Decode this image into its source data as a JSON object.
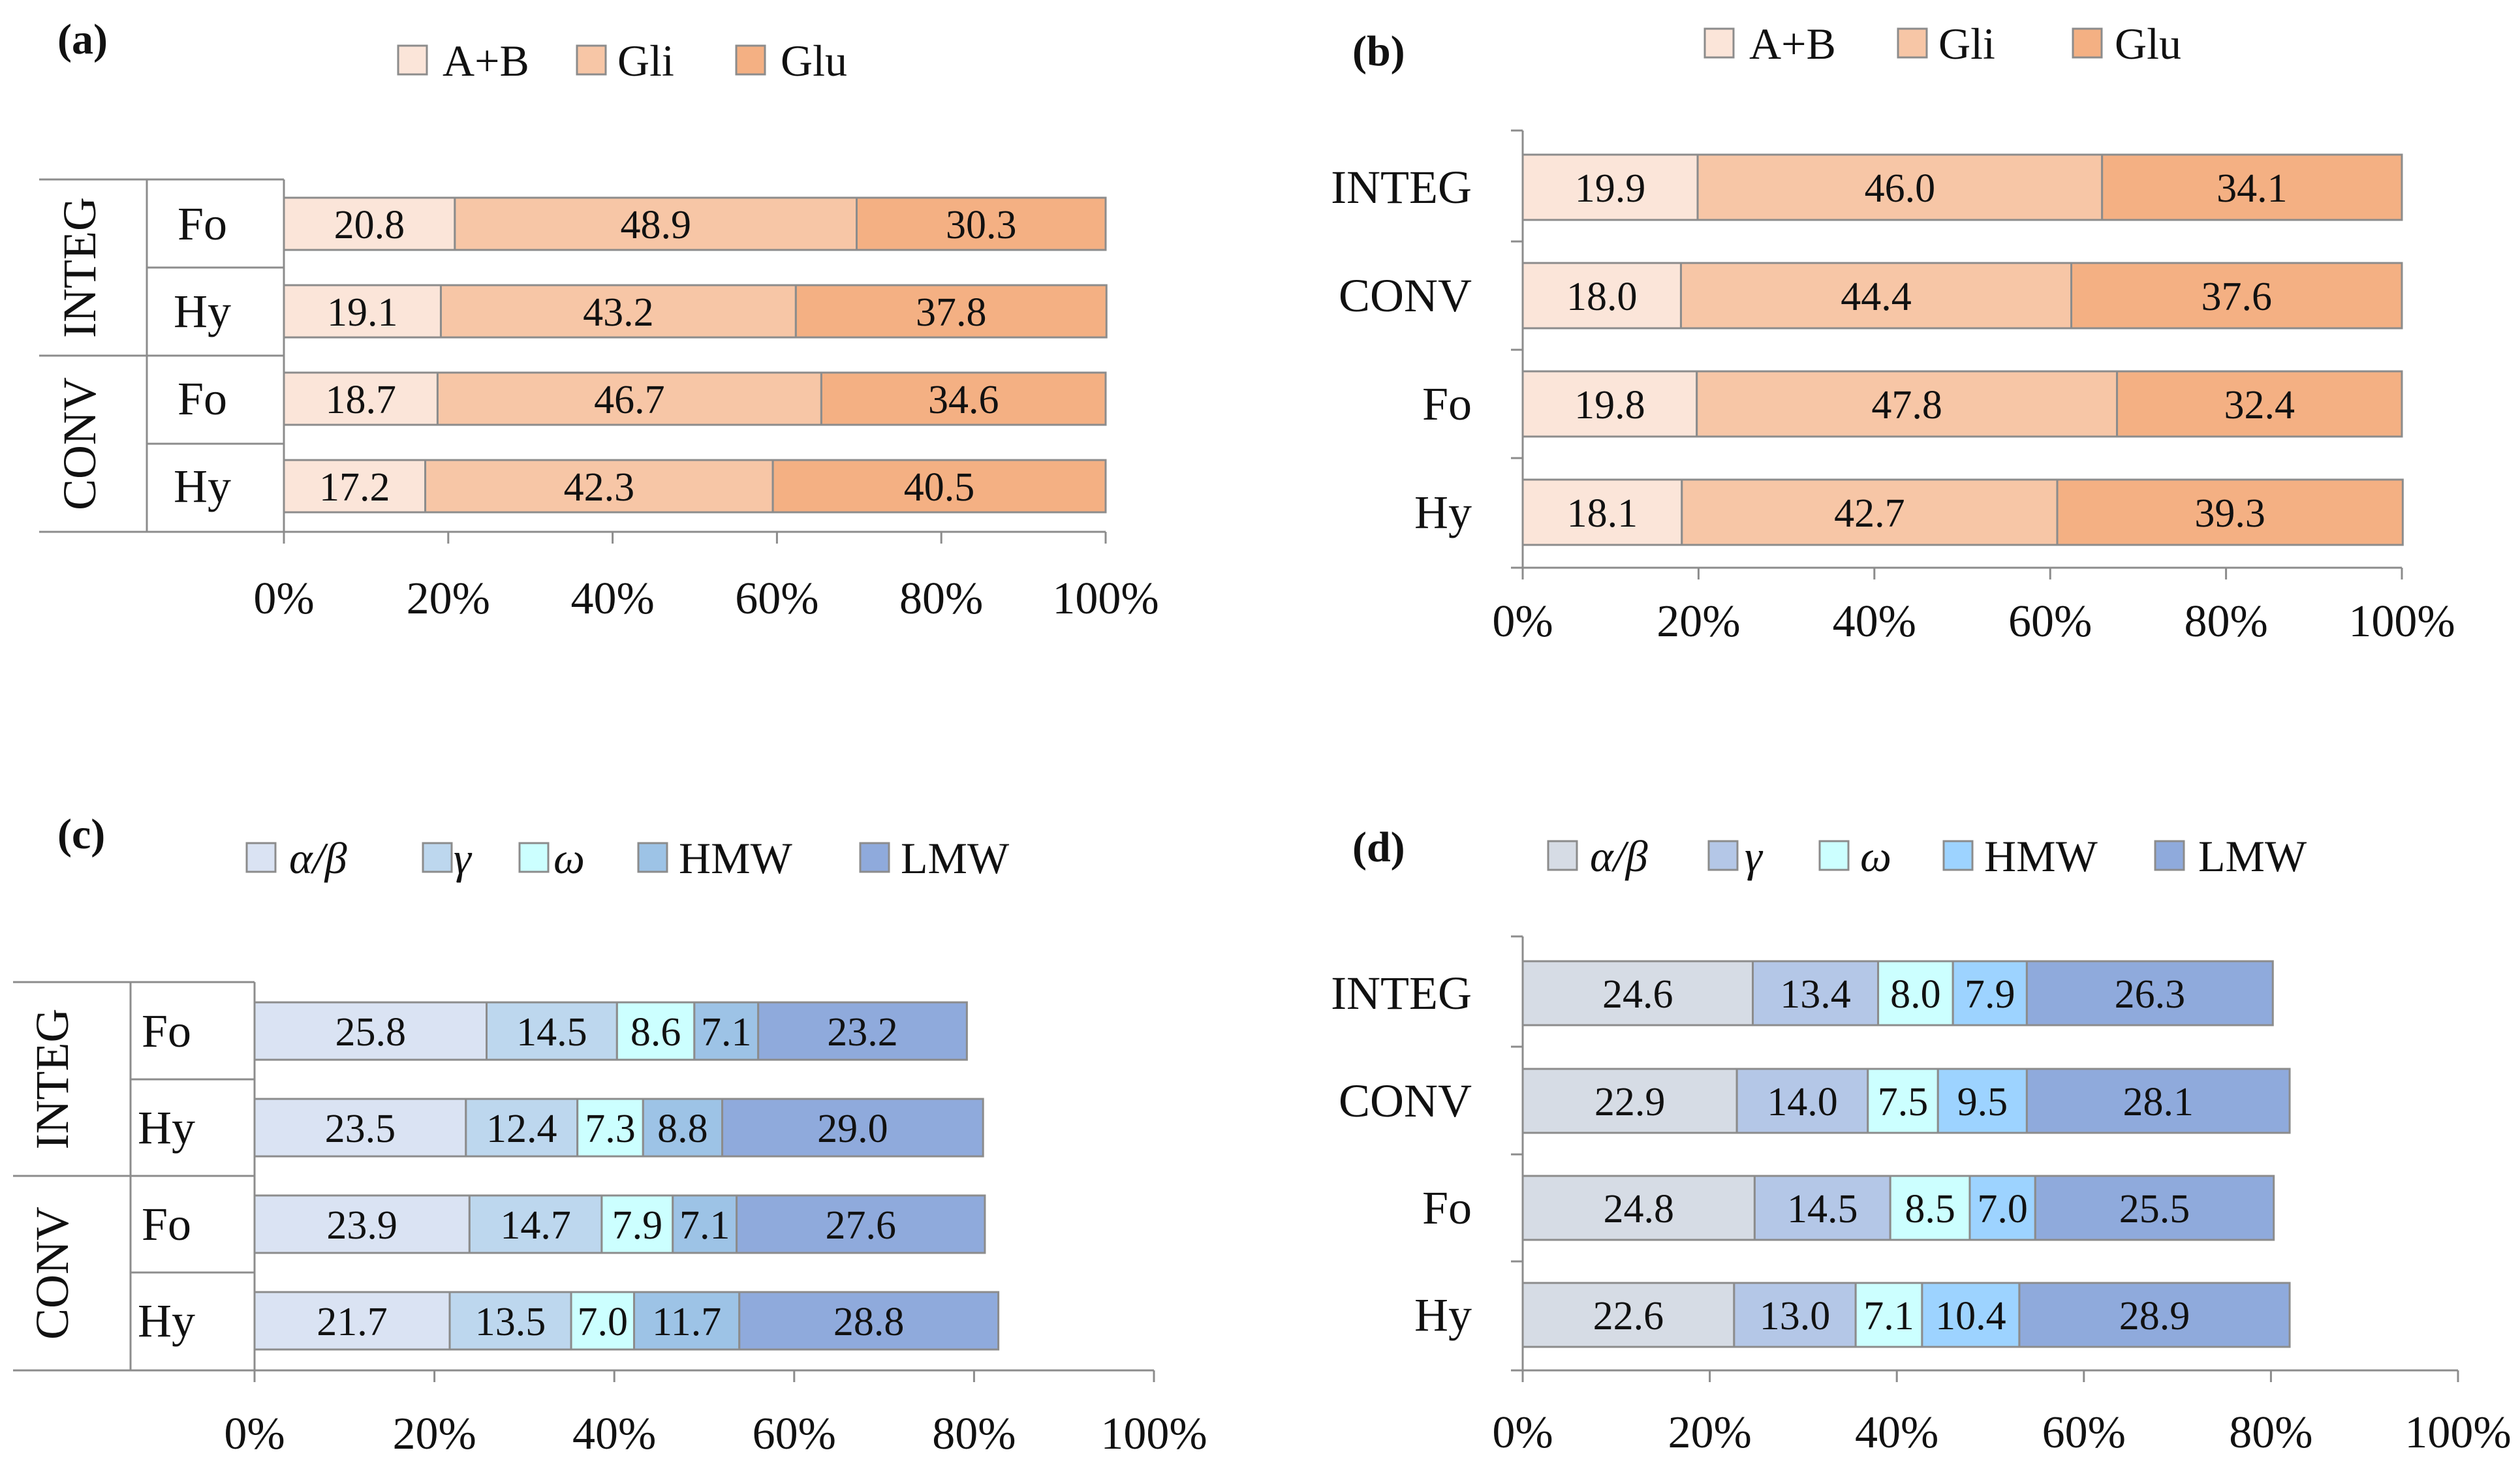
{
  "chart_data": [
    {
      "id": "a",
      "type": "bar",
      "orientation": "horizontal",
      "stacked": "percent",
      "panel_label": "(a)",
      "legend": [
        "A+B",
        "Gli",
        "Glu"
      ],
      "colors": [
        "#fbe5d9",
        "#f7c6a6",
        "#f4b083"
      ],
      "groups": [
        "INTEG",
        "CONV"
      ],
      "categories": [
        "Fo",
        "Hy",
        "Fo",
        "Hy"
      ],
      "category_group": [
        0,
        0,
        1,
        1
      ],
      "series": [
        {
          "name": "A+B",
          "values": [
            20.8,
            19.1,
            18.7,
            17.2
          ],
          "labels": [
            "20.8",
            "19.1",
            "18.7",
            "17.2"
          ]
        },
        {
          "name": "Gli",
          "values": [
            48.9,
            43.2,
            46.7,
            42.3
          ],
          "labels": [
            "48.9",
            "43.2",
            "46.7",
            "42.3"
          ]
        },
        {
          "name": "Glu",
          "values": [
            30.3,
            37.8,
            34.6,
            40.5
          ],
          "labels": [
            "30.3",
            "37.8",
            "34.6",
            "40.5"
          ]
        }
      ],
      "xticks": [
        "0%",
        "20%",
        "40%",
        "60%",
        "80%",
        "100%"
      ],
      "xlim": [
        0,
        100
      ]
    },
    {
      "id": "b",
      "type": "bar",
      "orientation": "horizontal",
      "stacked": "percent",
      "panel_label": "(b)",
      "legend": [
        "A+B",
        "Gli",
        "Glu"
      ],
      "colors": [
        "#fbe5d9",
        "#f7c6a6",
        "#f4b083"
      ],
      "categories": [
        "INTEG",
        "CONV",
        "Fo",
        "Hy"
      ],
      "series": [
        {
          "name": "A+B",
          "values": [
            19.9,
            18.0,
            19.8,
            18.1
          ],
          "labels": [
            "19.9",
            "18.0",
            "19.8",
            "18.1"
          ]
        },
        {
          "name": "Gli",
          "values": [
            46.0,
            44.4,
            47.8,
            42.7
          ],
          "labels": [
            "46.0",
            "44.4",
            "47.8",
            "42.7"
          ]
        },
        {
          "name": "Glu",
          "values": [
            34.1,
            37.6,
            32.4,
            39.3
          ],
          "labels": [
            "34.1",
            "37.6",
            "32.4",
            "39.3"
          ]
        }
      ],
      "xticks": [
        "0%",
        "20%",
        "40%",
        "60%",
        "80%",
        "100%"
      ],
      "xlim": [
        0,
        100
      ]
    },
    {
      "id": "c",
      "type": "bar",
      "orientation": "horizontal",
      "stacked": "percent",
      "panel_label": "(c)",
      "legend": [
        "α/β",
        "γ",
        "ω",
        "HMW",
        "LMW"
      ],
      "colors": [
        "#dae3f3",
        "#bdd7ee",
        "#ccffff",
        "#9dc3e6",
        "#8faadc"
      ],
      "groups": [
        "INTEG",
        "CONV"
      ],
      "categories": [
        "Fo",
        "Hy",
        "Fo",
        "Hy"
      ],
      "category_group": [
        0,
        0,
        1,
        1
      ],
      "series": [
        {
          "name": "α/β",
          "values": [
            25.8,
            23.5,
            23.9,
            21.7
          ],
          "labels": [
            "25.8",
            "23.5",
            "23.9",
            "21.7"
          ]
        },
        {
          "name": "γ",
          "values": [
            14.5,
            12.4,
            14.7,
            13.5
          ],
          "labels": [
            "14.5",
            "12.4",
            "14.7",
            "13.5"
          ]
        },
        {
          "name": "ω",
          "values": [
            8.6,
            7.3,
            7.9,
            7.0
          ],
          "labels": [
            "8.6",
            "7.3",
            "7.9",
            "7.0"
          ]
        },
        {
          "name": "HMW",
          "values": [
            7.1,
            8.8,
            7.1,
            11.7
          ],
          "labels": [
            "7.1",
            "8.8",
            "7.1",
            "11.7"
          ]
        },
        {
          "name": "LMW",
          "values": [
            23.2,
            29.0,
            27.6,
            28.8
          ],
          "labels": [
            "23.2",
            "29.0",
            "27.6",
            "28.8"
          ]
        }
      ],
      "xticks": [
        "0%",
        "20%",
        "40%",
        "60%",
        "80%",
        "100%"
      ],
      "xlim": [
        0,
        100
      ]
    },
    {
      "id": "d",
      "type": "bar",
      "orientation": "horizontal",
      "stacked": "percent",
      "panel_label": "(d)",
      "legend": [
        "α/β",
        "γ",
        "ω",
        "HMW",
        "LMW"
      ],
      "colors": [
        "#d6dce5",
        "#b4c7e7",
        "#ccffff",
        "#9dd3ff",
        "#8faadc"
      ],
      "categories": [
        "INTEG",
        "CONV",
        "Fo",
        "Hy"
      ],
      "series": [
        {
          "name": "α/β",
          "values": [
            24.6,
            22.9,
            24.8,
            22.6
          ],
          "labels": [
            "24.6",
            "22.9",
            "24.8",
            "22.6"
          ]
        },
        {
          "name": "γ",
          "values": [
            13.4,
            14.0,
            14.5,
            13.0
          ],
          "labels": [
            "13.4",
            "14.0",
            "14.5",
            "13.0"
          ]
        },
        {
          "name": "ω",
          "values": [
            8.0,
            7.5,
            8.5,
            7.1
          ],
          "labels": [
            "8.0",
            "7.5",
            "8.5",
            "7.1"
          ]
        },
        {
          "name": "HMW",
          "values": [
            7.9,
            9.5,
            7.0,
            10.4
          ],
          "labels": [
            "7.9",
            "9.5",
            "7.0",
            "10.4"
          ]
        },
        {
          "name": "LMW",
          "values": [
            26.3,
            28.1,
            25.5,
            28.9
          ],
          "labels": [
            "26.3",
            "28.1",
            "25.5",
            "28.9"
          ]
        }
      ],
      "xticks": [
        "0%",
        "20%",
        "40%",
        "60%",
        "80%",
        "100%"
      ],
      "xlim": [
        0,
        100
      ]
    }
  ]
}
